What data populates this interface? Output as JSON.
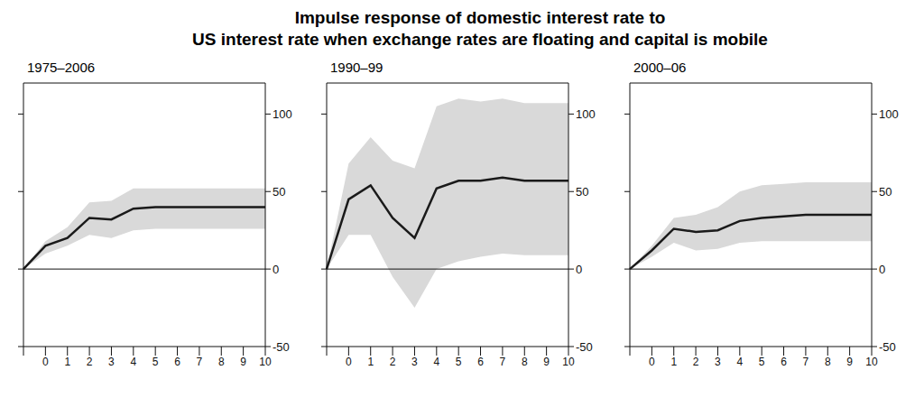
{
  "chart_data": [
    {
      "type": "line",
      "title": "Impulse response of domestic interest rate to\nUS interest rate when exchange rates are floating and capital is mobile",
      "subtitle": "1975–2006",
      "categories": [
        null,
        "0",
        "1",
        "2",
        "3",
        "4",
        "5",
        "6",
        "7",
        "8",
        "9",
        "10"
      ],
      "values": [
        0,
        15,
        20,
        33,
        32,
        39,
        40,
        40,
        40,
        40,
        40,
        40
      ],
      "lower": [
        0,
        10,
        15,
        22,
        20,
        25,
        26,
        26,
        26,
        26,
        26,
        26
      ],
      "upper": [
        0,
        18,
        27,
        43,
        44,
        52,
        52,
        52,
        52,
        52,
        52,
        52
      ],
      "color": "#1a1a1a",
      "band_color": "#d9d9d9",
      "ylim": [
        -50,
        120
      ],
      "yticks": [
        -50,
        0,
        50,
        100
      ]
    },
    {
      "type": "line",
      "subtitle": "1990–99",
      "categories": [
        null,
        "0",
        "1",
        "2",
        "3",
        "4",
        "5",
        "6",
        "7",
        "8",
        "9",
        "10"
      ],
      "values": [
        0,
        45,
        54,
        33,
        20,
        52,
        57,
        57,
        59,
        57,
        57,
        57
      ],
      "lower": [
        0,
        22,
        22,
        -5,
        -25,
        0,
        5,
        8,
        10,
        9,
        9,
        9
      ],
      "upper": [
        0,
        68,
        85,
        70,
        65,
        105,
        110,
        108,
        110,
        107,
        107,
        107
      ],
      "color": "#1a1a1a",
      "band_color": "#d9d9d9",
      "ylim": [
        -50,
        120
      ],
      "yticks": [
        -50,
        0,
        50,
        100
      ]
    },
    {
      "type": "line",
      "subtitle": "2000–06",
      "categories": [
        null,
        "0",
        "1",
        "2",
        "3",
        "4",
        "5",
        "6",
        "7",
        "8",
        "9",
        "10"
      ],
      "values": [
        0,
        12,
        26,
        24,
        25,
        31,
        33,
        34,
        35,
        35,
        35,
        35
      ],
      "lower": [
        0,
        8,
        17,
        12,
        13,
        17,
        18,
        18,
        18,
        18,
        18,
        18
      ],
      "upper": [
        0,
        15,
        33,
        35,
        40,
        50,
        54,
        55,
        56,
        56,
        56,
        56
      ],
      "color": "#1a1a1a",
      "band_color": "#d9d9d9",
      "ylim": [
        -50,
        120
      ],
      "yticks": [
        -50,
        0,
        50,
        100
      ]
    }
  ]
}
